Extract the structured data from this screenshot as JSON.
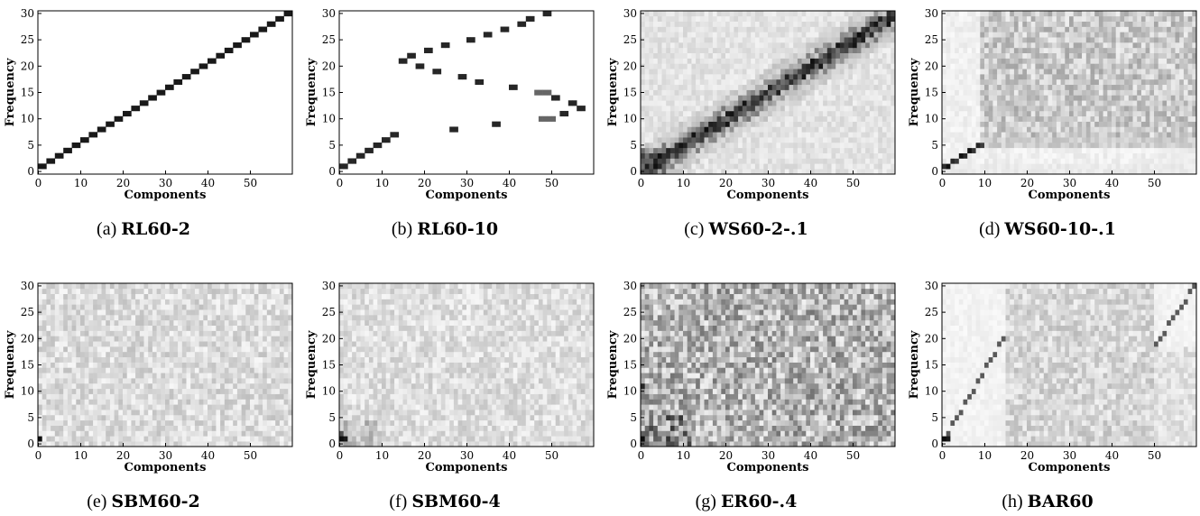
{
  "figure": {
    "panels": [
      {
        "id": "a",
        "letter": "(a)",
        "name": "RL60-2",
        "pattern": "diag2"
      },
      {
        "id": "b",
        "letter": "(b)",
        "name": "RL60-10",
        "pattern": "rl10"
      },
      {
        "id": "c",
        "letter": "(c)",
        "name": "WS60-2-.1",
        "pattern": "wsdiag"
      },
      {
        "id": "d",
        "letter": "(d)",
        "name": "WS60-10-.1",
        "pattern": "wsnoise"
      },
      {
        "id": "e",
        "letter": "(e)",
        "name": "SBM60-2",
        "pattern": "sbm2"
      },
      {
        "id": "f",
        "letter": "(f)",
        "name": "SBM60-4",
        "pattern": "sbm4"
      },
      {
        "id": "g",
        "letter": "(g)",
        "name": "ER60-.4",
        "pattern": "er"
      },
      {
        "id": "h",
        "letter": "(h)",
        "name": "BAR60",
        "pattern": "bar"
      }
    ]
  },
  "chart_data": {
    "type": "heatmap",
    "xlabel": "Components",
    "ylabel": "Frequency",
    "xlim": [
      0,
      59
    ],
    "ylim": [
      0,
      30
    ],
    "x_ticks": [
      0,
      10,
      20,
      30,
      40,
      50
    ],
    "y_ticks": [
      0,
      5,
      10,
      15,
      20,
      25,
      30
    ],
    "colormap": "gray (white = 0, black = high)",
    "rl60_10_cells": [
      [
        0,
        1
      ],
      [
        2,
        2
      ],
      [
        4,
        3
      ],
      [
        6,
        4
      ],
      [
        8,
        5
      ],
      [
        10,
        6
      ],
      [
        12,
        7
      ],
      [
        14,
        21
      ],
      [
        16,
        22
      ],
      [
        18,
        20
      ],
      [
        20,
        23
      ],
      [
        22,
        19
      ],
      [
        24,
        24
      ],
      [
        26,
        8
      ],
      [
        28,
        18
      ],
      [
        30,
        25
      ],
      [
        32,
        17
      ],
      [
        34,
        26
      ],
      [
        36,
        9
      ],
      [
        38,
        27
      ],
      [
        40,
        16
      ],
      [
        42,
        28
      ],
      [
        44,
        29
      ],
      [
        46,
        15
      ],
      [
        47,
        10
      ],
      [
        48,
        30
      ],
      [
        48,
        15
      ],
      [
        49,
        10
      ],
      [
        50,
        14
      ],
      [
        52,
        11
      ],
      [
        54,
        13
      ],
      [
        56,
        12
      ]
    ]
  }
}
